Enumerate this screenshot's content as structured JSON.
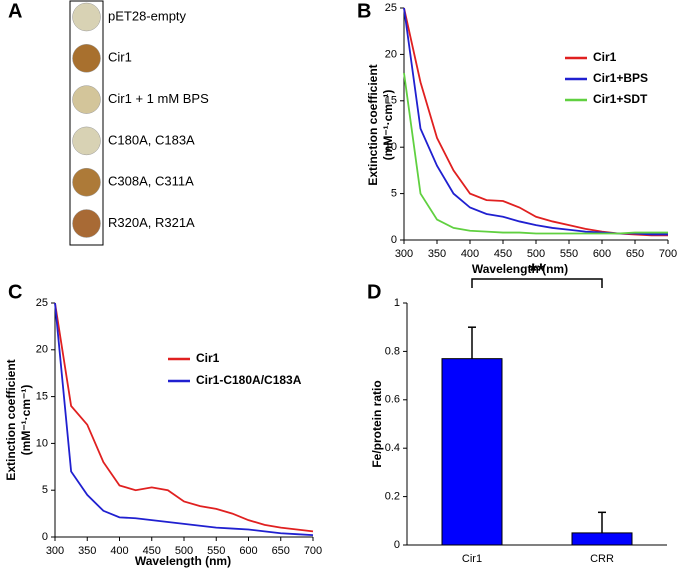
{
  "chart_data": [
    {
      "type": "spots",
      "panel": "A",
      "categories": [
        "pET28-empty",
        "Cir1",
        "Cir1 + 1 mM BPS",
        "C180A, C183A",
        "C308A, C311A",
        "R320A, R321A"
      ],
      "colors": [
        "#d8d2b4",
        "#a8702e",
        "#d3c59a",
        "#d8d2b4",
        "#ad7a38",
        "#a86a35"
      ]
    },
    {
      "type": "line",
      "panel": "B",
      "ylabel": [
        "Extinction coefficient",
        "(mM⁻¹·cm⁻¹)"
      ],
      "xlabel": "Wavelength (nm)",
      "x": [
        300,
        325,
        350,
        375,
        400,
        425,
        450,
        475,
        500,
        525,
        550,
        575,
        600,
        625,
        650,
        675,
        700
      ],
      "series": [
        {
          "name": "Cir1",
          "color": "#e02020",
          "values": [
            25,
            17,
            11,
            7.5,
            5,
            4.3,
            4.2,
            3.5,
            2.5,
            2,
            1.6,
            1.2,
            0.9,
            0.7,
            0.6,
            0.5,
            0.5
          ]
        },
        {
          "name": "Cir1+BPS",
          "color": "#2020d0",
          "values": [
            25,
            12,
            8,
            5,
            3.5,
            2.8,
            2.5,
            2,
            1.6,
            1.3,
            1.1,
            0.9,
            0.8,
            0.7,
            0.7,
            0.6,
            0.6
          ]
        },
        {
          "name": "Cir1+SDT",
          "color": "#60d040",
          "values": [
            18,
            5,
            2.2,
            1.3,
            1,
            0.9,
            0.8,
            0.8,
            0.7,
            0.7,
            0.7,
            0.7,
            0.7,
            0.7,
            0.8,
            0.8,
            0.8
          ]
        }
      ],
      "xlim": [
        300,
        700
      ],
      "xticks": [
        300,
        350,
        400,
        450,
        500,
        550,
        600,
        650,
        700
      ],
      "ylim": [
        0,
        25
      ],
      "yticks": [
        0,
        5,
        10,
        15,
        20,
        25
      ]
    },
    {
      "type": "line",
      "panel": "C",
      "ylabel": [
        "Extinction coefficient",
        "(mM⁻¹·cm⁻¹)"
      ],
      "xlabel": "Wavelength (nm)",
      "x": [
        300,
        325,
        350,
        375,
        400,
        425,
        450,
        475,
        500,
        525,
        550,
        575,
        600,
        625,
        650,
        675,
        700
      ],
      "series": [
        {
          "name": "Cir1",
          "color": "#e02020",
          "values": [
            25,
            14,
            12,
            8,
            5.5,
            5,
            5.3,
            5,
            3.8,
            3.3,
            3,
            2.5,
            1.8,
            1.3,
            1,
            0.8,
            0.6
          ]
        },
        {
          "name": "Cir1-C180A/C183A",
          "color": "#2020d0",
          "values": [
            25,
            7,
            4.5,
            2.8,
            2.1,
            2,
            1.8,
            1.6,
            1.4,
            1.2,
            1,
            0.9,
            0.8,
            0.6,
            0.4,
            0.3,
            0.2
          ]
        }
      ],
      "xlim": [
        300,
        700
      ],
      "xticks": [
        300,
        350,
        400,
        450,
        500,
        550,
        600,
        650,
        700
      ],
      "ylim": [
        0,
        25
      ],
      "yticks": [
        0,
        5,
        10,
        15,
        20,
        25
      ]
    },
    {
      "type": "bar",
      "panel": "D",
      "ylabel": "Fe/protein ratio",
      "annotation": "**",
      "categories": [
        "Cir1",
        "CRR"
      ],
      "values": [
        0.77,
        0.05
      ],
      "errors": [
        0.13,
        0.085
      ],
      "color": "#0000ff",
      "ylim": [
        0,
        1
      ],
      "yticks": [
        0,
        0.2,
        0.4,
        0.6,
        0.8,
        1
      ]
    }
  ]
}
